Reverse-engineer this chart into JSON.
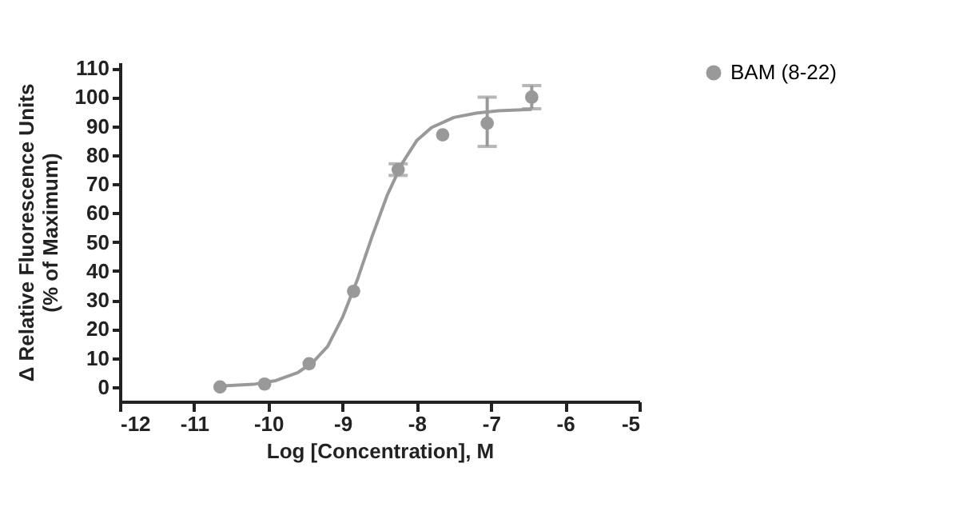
{
  "chart_data": {
    "type": "scatter",
    "xlabel": "Log [Concentration], M",
    "ylabel": "Δ Relative Fluorescence Units\n(% of Maximum)",
    "xlim": [
      -12,
      -5
    ],
    "xticks": [
      -12,
      -11,
      -10,
      -9,
      -8,
      -7,
      -6,
      -5
    ],
    "ylim": [
      -5,
      112
    ],
    "yticks": [
      0,
      10,
      20,
      30,
      40,
      50,
      60,
      70,
      80,
      90,
      100,
      110
    ],
    "marker": "circle",
    "legend": "top right",
    "grid": false,
    "series": [
      {
        "name": "BAM (8-22)",
        "color": "#999999",
        "x": [
          -10.65,
          -10.05,
          -9.45,
          -8.85,
          -8.25,
          -7.65,
          -7.05,
          -6.45
        ],
        "values": [
          0,
          1,
          8,
          33,
          75,
          87,
          91,
          100
        ],
        "errors": [
          null,
          null,
          null,
          null,
          [
            73,
            77
          ],
          null,
          [
            83,
            100
          ],
          [
            96,
            104
          ]
        ]
      },
      {
        "type": "line",
        "color": "#999999",
        "x": [
          -10.65,
          -10.2,
          -9.9,
          -9.6,
          -9.4,
          -9.2,
          -9.0,
          -8.8,
          -8.6,
          -8.4,
          -8.2,
          -8.0,
          -7.8,
          -7.5,
          -7.2,
          -6.9,
          -6.45
        ],
        "values": [
          0.3,
          0.9,
          2.2,
          5,
          8.5,
          14,
          24,
          37,
          52,
          66,
          77,
          85,
          89.5,
          93,
          94.5,
          95.3,
          95.8
        ],
        "line_style": "solid",
        "marker": "none"
      }
    ]
  }
}
